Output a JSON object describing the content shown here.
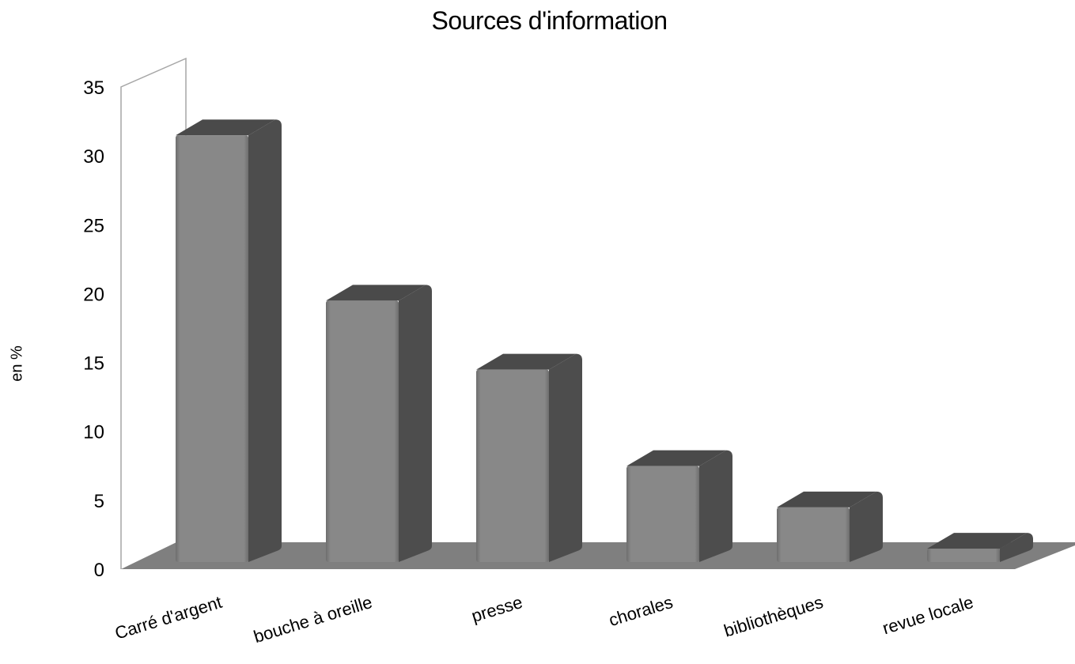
{
  "chart_data": {
    "type": "bar",
    "title": "Sources d'information",
    "ylabel": "en %",
    "xlabel": "",
    "categories": [
      "Carré d'argent",
      "bouche à oreille",
      "presse",
      "chorales",
      "bibliothèques",
      "revue locale"
    ],
    "values": [
      32,
      20,
      15,
      8,
      5,
      2
    ],
    "ylim": [
      0,
      35
    ],
    "yticks": [
      "0",
      "5",
      "10",
      "15",
      "20",
      "25",
      "30",
      "35"
    ],
    "grid": false,
    "legend": "none",
    "colors": {
      "bar_front": "#888888",
      "bar_side": "#4d4d4d",
      "bar_top": "#4a4a4a",
      "floor": "#7f7f7f",
      "wall": "#a6a6a6"
    }
  }
}
